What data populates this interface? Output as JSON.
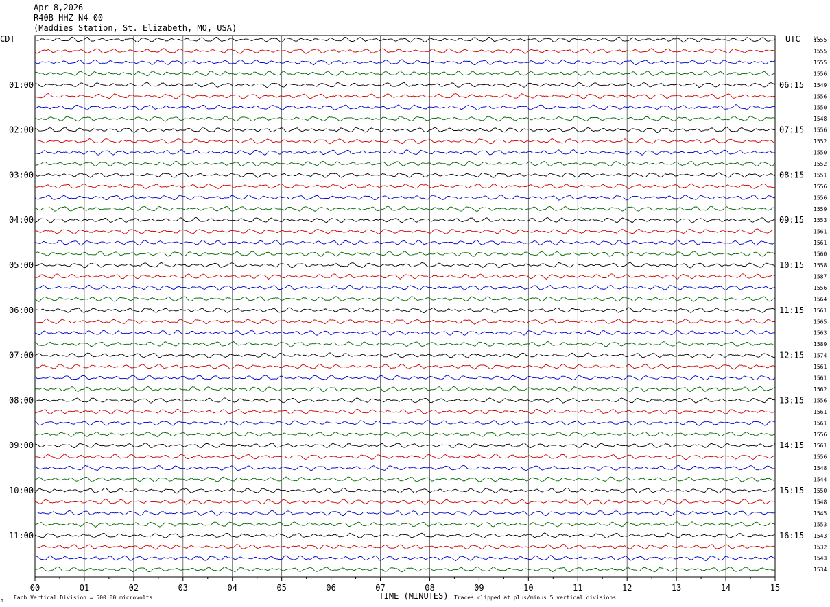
{
  "header": {
    "date": "Apr 8,2026",
    "channel": "R40B HHZ N4 00",
    "station": "(Maddies Station, St. Elizabeth, MO, USA)"
  },
  "chart_data": {
    "type": "line",
    "title": "",
    "left_axis_label": "CDT",
    "right_axis_label": "UTC",
    "dc_label": "DC",
    "xlabel": "TIME (MINUTES)",
    "xlim": [
      0,
      15
    ],
    "x_ticks": [
      "00",
      "01",
      "02",
      "03",
      "04",
      "05",
      "06",
      "07",
      "08",
      "09",
      "10",
      "11",
      "12",
      "13",
      "14",
      "15"
    ],
    "series_colors": [
      "#000000",
      "#cc0000",
      "#0000cc",
      "#006600"
    ],
    "rows_per_hour": 4,
    "left_hour_labels": [
      "01:00",
      "02:00",
      "03:00",
      "04:00",
      "05:00",
      "06:00",
      "07:00",
      "08:00",
      "09:00",
      "10:00",
      "11:00"
    ],
    "right_hour_labels": [
      "06:15",
      "07:15",
      "08:15",
      "09:15",
      "10:15",
      "11:15",
      "12:15",
      "13:15",
      "14:15",
      "15:15",
      "16:15"
    ],
    "dc_values": [
      "1555",
      "1555",
      "1555",
      "1556",
      "1549",
      "1556",
      "1550",
      "1548",
      "1556",
      "1552",
      "1550",
      "1552",
      "1551",
      "1556",
      "1556",
      "1559",
      "1553",
      "1561",
      "1561",
      "1560",
      "1558",
      "1587",
      "1556",
      "1564",
      "1561",
      "1565",
      "1563",
      "1589",
      "1574",
      "1561",
      "1561",
      "1562",
      "1556",
      "1561",
      "1561",
      "1556",
      "1561",
      "1556",
      "1548",
      "1544",
      "1550",
      "1548",
      "1545",
      "1553",
      "1543",
      "1532",
      "1543",
      "1534"
    ],
    "footer_left": "Each Vertical Division =  500.00 microvolts",
    "footer_right": "Traces clipped at plus/minus 5 vertical divisions",
    "corner_mark": "m"
  }
}
